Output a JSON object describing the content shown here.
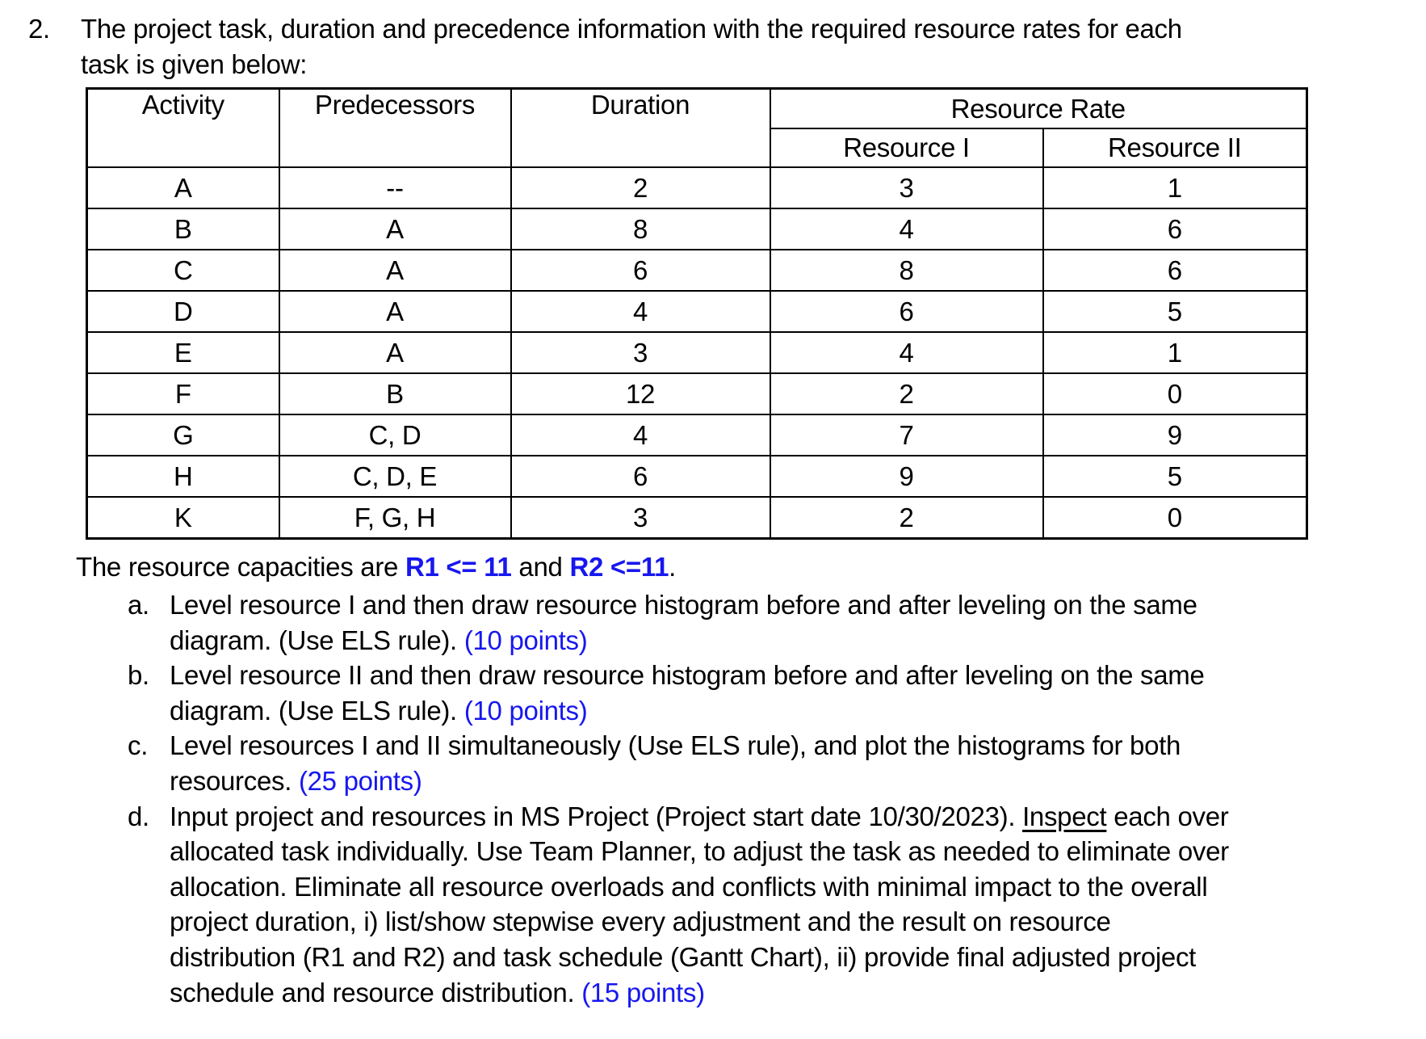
{
  "colors": {
    "background": "#ffffff",
    "text": "#000000",
    "accent_blue": "#1717ef"
  },
  "document": {
    "item_number": "2.",
    "intro_lines": [
      "The project task, duration and precedence information with the required resource rates for each",
      "task is given below:"
    ],
    "table": {
      "headers": {
        "activity": "Activity",
        "predecessors": "Predecessors",
        "duration": "Duration",
        "resource_rate": "Resource Rate",
        "resource_1": "Resource I",
        "resource_2": "Resource II"
      },
      "rows": [
        {
          "activity": "A",
          "predecessors": "--",
          "duration": "2",
          "r1": "3",
          "r2": "1"
        },
        {
          "activity": "B",
          "predecessors": "A",
          "duration": "8",
          "r1": "4",
          "r2": "6"
        },
        {
          "activity": "C",
          "predecessors": "A",
          "duration": "6",
          "r1": "8",
          "r2": "6"
        },
        {
          "activity": "D",
          "predecessors": "A",
          "duration": "4",
          "r1": "6",
          "r2": "5"
        },
        {
          "activity": "E",
          "predecessors": "A",
          "duration": "3",
          "r1": "4",
          "r2": "1"
        },
        {
          "activity": "F",
          "predecessors": "B",
          "duration": "12",
          "r1": "2",
          "r2": "0"
        },
        {
          "activity": "G",
          "predecessors": "C, D",
          "duration": "4",
          "r1": "7",
          "r2": "9"
        },
        {
          "activity": "H",
          "predecessors": "C, D, E",
          "duration": "6",
          "r1": "9",
          "r2": "5"
        },
        {
          "activity": "K",
          "predecessors": "F, G, H",
          "duration": "3",
          "r1": "2",
          "r2": "0"
        }
      ]
    },
    "capacity_segments": [
      {
        "text": "The resource capacities are ",
        "style": "normal"
      },
      {
        "text": "R1 <= 11",
        "style": "blue-bold"
      },
      {
        "text": " and ",
        "style": "normal"
      },
      {
        "text": "R2 <=11",
        "style": "blue-bold"
      },
      {
        "text": ".",
        "style": "normal"
      }
    ],
    "list_items": [
      {
        "marker": "a.",
        "lines": [
          [
            {
              "text": "Level resource I and then draw resource histogram before and after leveling on the same",
              "style": "normal"
            }
          ],
          [
            {
              "text": "diagram. (Use ELS rule). ",
              "style": "normal"
            },
            {
              "text": "(10 points)",
              "style": "blue"
            }
          ]
        ]
      },
      {
        "marker": "b.",
        "lines": [
          [
            {
              "text": "Level resource II and then draw resource histogram before and after leveling on the same",
              "style": "normal"
            }
          ],
          [
            {
              "text": "diagram. (Use ELS rule). ",
              "style": "normal"
            },
            {
              "text": "(10 points)",
              "style": "blue"
            }
          ]
        ]
      },
      {
        "marker": "c.",
        "lines": [
          [
            {
              "text": "Level resources I and II simultaneously (Use ELS rule), and plot the histograms for both",
              "style": "normal"
            }
          ],
          [
            {
              "text": "resources. ",
              "style": "normal"
            },
            {
              "text": "(25 points)",
              "style": "blue"
            }
          ]
        ]
      },
      {
        "marker": "d.",
        "lines": [
          [
            {
              "text": "Input project and resources in MS Project (Project start date 10/30/2023). ",
              "style": "normal"
            },
            {
              "text": "Inspect",
              "style": "underline"
            },
            {
              "text": " each over",
              "style": "normal"
            }
          ],
          [
            {
              "text": "allocated task individually. Use Team Planner, to adjust the task as needed to eliminate over",
              "style": "normal"
            }
          ],
          [
            {
              "text": "allocation. Eliminate all resource overloads and conflicts with minimal impact to the overall",
              "style": "normal"
            }
          ],
          [
            {
              "text": "project duration, i) list/show stepwise every adjustment and the result on resource",
              "style": "normal"
            }
          ],
          [
            {
              "text": "distribution (R1 and R2) and task schedule (Gantt Chart), ii) provide final adjusted project",
              "style": "normal"
            }
          ],
          [
            {
              "text": "schedule and resource distribution. ",
              "style": "normal"
            },
            {
              "text": "(15 points)",
              "style": "blue"
            }
          ]
        ]
      }
    ]
  }
}
